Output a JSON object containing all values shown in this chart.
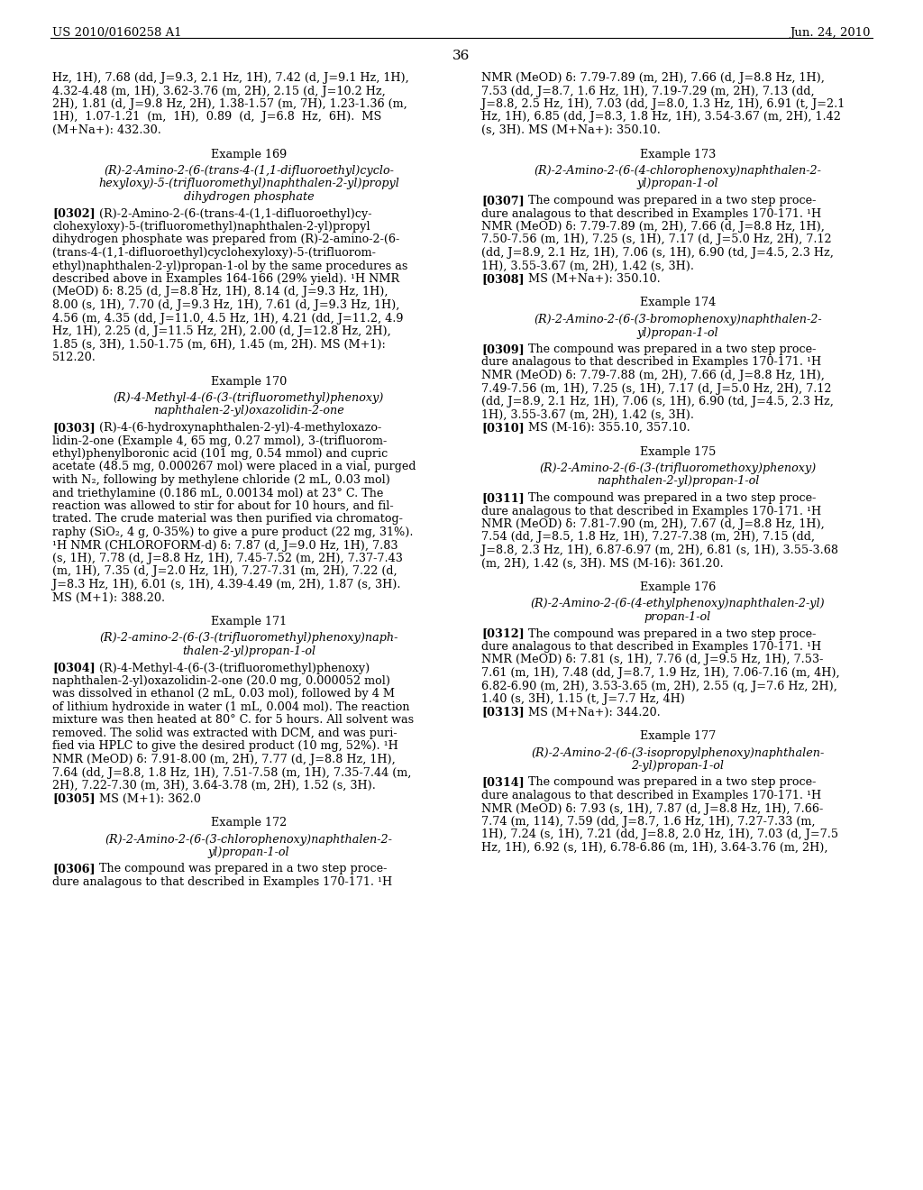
{
  "background_color": "#ffffff",
  "header_left": "US 2010/0160258 A1",
  "header_right": "Jun. 24, 2010",
  "page_number": "36",
  "left_column_lines": [
    [
      "body",
      "Hz, 1H), 7.68 (dd, J=9.3, 2.1 Hz, 1H), 7.42 (d, J=9.1 Hz, 1H),"
    ],
    [
      "body",
      "4.32-4.48 (m, 1H), 3.62-3.76 (m, 2H), 2.15 (d, J=10.2 Hz,"
    ],
    [
      "body",
      "2H), 1.81 (d, J=9.8 Hz, 2H), 1.38-1.57 (m, 7H), 1.23-1.36 (m,"
    ],
    [
      "body",
      "1H),  1.07-1.21  (m,  1H),  0.89  (d,  J=6.8  Hz,  6H).  MS"
    ],
    [
      "body",
      "(M+Na+): 432.30."
    ],
    [
      "gap",
      ""
    ],
    [
      "center",
      "Example 169"
    ],
    [
      "gap_small",
      ""
    ],
    [
      "center_italic",
      "(R)-2-Amino-2-(6-(trans-4-(1,1-difluoroethyl)cyclo-"
    ],
    [
      "center_italic",
      "hexyloxy)-5-(trifluoromethyl)naphthalen-2-yl)propyl"
    ],
    [
      "center_italic",
      "dihydrogen phosphate"
    ],
    [
      "gap_small",
      ""
    ],
    [
      "tag_line",
      "[0302]",
      "(R)-2-Amino-2-(6-(trans-4-(1,1-difluoroethyl)cy-"
    ],
    [
      "body",
      "clohexyloxy)-5-(trifluoromethyl)naphthalen-2-yl)propyl"
    ],
    [
      "body",
      "dihydrogen phosphate was prepared from (R)-2-amino-2-(6-"
    ],
    [
      "body",
      "(trans-4-(1,1-difluoroethyl)cyclohexyloxy)-5-(trifluorom-"
    ],
    [
      "body",
      "ethyl)naphthalen-2-yl)propan-1-ol by the same procedures as"
    ],
    [
      "body",
      "described above in Examples 164-166 (29% yield). ¹H NMR"
    ],
    [
      "body",
      "(MeOD) δ: 8.25 (d, J=8.8 Hz, 1H), 8.14 (d, J=9.3 Hz, 1H),"
    ],
    [
      "body",
      "8.00 (s, 1H), 7.70 (d, J=9.3 Hz, 1H), 7.61 (d, J=9.3 Hz, 1H),"
    ],
    [
      "body",
      "4.56 (m, 4.35 (dd, J=11.0, 4.5 Hz, 1H), 4.21 (dd, J=11.2, 4.9"
    ],
    [
      "body",
      "Hz, 1H), 2.25 (d, J=11.5 Hz, 2H), 2.00 (d, J=12.8 Hz, 2H),"
    ],
    [
      "body",
      "1.85 (s, 3H), 1.50-1.75 (m, 6H), 1.45 (m, 2H). MS (M+1):"
    ],
    [
      "body",
      "512.20."
    ],
    [
      "gap",
      ""
    ],
    [
      "center",
      "Example 170"
    ],
    [
      "gap_small",
      ""
    ],
    [
      "center_italic",
      "(R)-4-Methyl-4-(6-(3-(trifluoromethyl)phenoxy)"
    ],
    [
      "center_italic",
      "naphthalen-2-yl)oxazolidin-2-one"
    ],
    [
      "gap_small",
      ""
    ],
    [
      "tag_line",
      "[0303]",
      "(R)-4-(6-hydroxynaphthalen-2-yl)-4-methyloxazo-"
    ],
    [
      "body",
      "lidin-2-one (Example 4, 65 mg, 0.27 mmol), 3-(trifluorom-"
    ],
    [
      "body",
      "ethyl)phenylboronic acid (101 mg, 0.54 mmol) and cupric"
    ],
    [
      "body",
      "acetate (48.5 mg, 0.000267 mol) were placed in a vial, purged"
    ],
    [
      "body",
      "with N₂, following by methylene chloride (2 mL, 0.03 mol)"
    ],
    [
      "body",
      "and triethylamine (0.186 mL, 0.00134 mol) at 23° C. The"
    ],
    [
      "body",
      "reaction was allowed to stir for about for 10 hours, and fil-"
    ],
    [
      "body",
      "trated. The crude material was then purified via chromatog-"
    ],
    [
      "body",
      "raphy (SiO₂, 4 g, 0-35%) to give a pure product (22 mg, 31%)."
    ],
    [
      "body",
      "¹H NMR (CHLOROFORM-d) δ: 7.87 (d, J=9.0 Hz, 1H), 7.83"
    ],
    [
      "body",
      "(s, 1H), 7.78 (d, J=8.8 Hz, 1H), 7.45-7.52 (m, 2H), 7.37-7.43"
    ],
    [
      "body",
      "(m, 1H), 7.35 (d, J=2.0 Hz, 1H), 7.27-7.31 (m, 2H), 7.22 (d,"
    ],
    [
      "body",
      "J=8.3 Hz, 1H), 6.01 (s, 1H), 4.39-4.49 (m, 2H), 1.87 (s, 3H)."
    ],
    [
      "body",
      "MS (M+1): 388.20."
    ],
    [
      "gap",
      ""
    ],
    [
      "center",
      "Example 171"
    ],
    [
      "gap_small",
      ""
    ],
    [
      "center_italic",
      "(R)-2-amino-2-(6-(3-(trifluoromethyl)phenoxy)naph-"
    ],
    [
      "center_italic",
      "thalen-2-yl)propan-1-ol"
    ],
    [
      "gap_small",
      ""
    ],
    [
      "tag_line",
      "[0304]",
      "(R)-4-Methyl-4-(6-(3-(trifluoromethyl)phenoxy)"
    ],
    [
      "body",
      "naphthalen-2-yl)oxazolidin-2-one (20.0 mg, 0.000052 mol)"
    ],
    [
      "body",
      "was dissolved in ethanol (2 mL, 0.03 mol), followed by 4 M"
    ],
    [
      "body",
      "of lithium hydroxide in water (1 mL, 0.004 mol). The reaction"
    ],
    [
      "body",
      "mixture was then heated at 80° C. for 5 hours. All solvent was"
    ],
    [
      "body",
      "removed. The solid was extracted with DCM, and was puri-"
    ],
    [
      "body",
      "fied via HPLC to give the desired product (10 mg, 52%). ¹H"
    ],
    [
      "body",
      "NMR (MeOD) δ: 7.91-8.00 (m, 2H), 7.77 (d, J=8.8 Hz, 1H),"
    ],
    [
      "body",
      "7.64 (dd, J=8.8, 1.8 Hz, 1H), 7.51-7.58 (m, 1H), 7.35-7.44 (m,"
    ],
    [
      "body",
      "2H), 7.22-7.30 (m, 3H), 3.64-3.78 (m, 2H), 1.52 (s, 3H)."
    ],
    [
      "tag_line2",
      "[0305]",
      "MS (M+1): 362.0"
    ],
    [
      "gap",
      ""
    ],
    [
      "center",
      "Example 172"
    ],
    [
      "gap_small",
      ""
    ],
    [
      "center_italic",
      "(R)-2-Amino-2-(6-(3-chlorophenoxy)naphthalen-2-"
    ],
    [
      "center_italic",
      "yl)propan-1-ol"
    ],
    [
      "gap_small",
      ""
    ],
    [
      "tag_line",
      "[0306]",
      "The compound was prepared in a two step proce-"
    ],
    [
      "body",
      "dure analagous to that described in Examples 170-171. ¹H"
    ]
  ],
  "right_column_lines": [
    [
      "body",
      "NMR (MeOD) δ: 7.79-7.89 (m, 2H), 7.66 (d, J=8.8 Hz, 1H),"
    ],
    [
      "body",
      "7.53 (dd, J=8.7, 1.6 Hz, 1H), 7.19-7.29 (m, 2H), 7.13 (dd,"
    ],
    [
      "body",
      "J=8.8, 2.5 Hz, 1H), 7.03 (dd, J=8.0, 1.3 Hz, 1H), 6.91 (t, J=2.1"
    ],
    [
      "body",
      "Hz, 1H), 6.85 (dd, J=8.3, 1.8 Hz, 1H), 3.54-3.67 (m, 2H), 1.42"
    ],
    [
      "body",
      "(s, 3H). MS (M+Na+): 350.10."
    ],
    [
      "gap",
      ""
    ],
    [
      "center",
      "Example 173"
    ],
    [
      "gap_small",
      ""
    ],
    [
      "center_italic",
      "(R)-2-Amino-2-(6-(4-chlorophenoxy)naphthalen-2-"
    ],
    [
      "center_italic",
      "yl)propan-1-ol"
    ],
    [
      "gap_small",
      ""
    ],
    [
      "tag_line",
      "[0307]",
      "The compound was prepared in a two step proce-"
    ],
    [
      "body",
      "dure analagous to that described in Examples 170-171. ¹H"
    ],
    [
      "body",
      "NMR (MeOD) δ: 7.79-7.89 (m, 2H), 7.66 (d, J=8.8 Hz, 1H),"
    ],
    [
      "body",
      "7.50-7.56 (m, 1H), 7.25 (s, 1H), 7.17 (d, J=5.0 Hz, 2H), 7.12"
    ],
    [
      "body",
      "(dd, J=8.9, 2.1 Hz, 1H), 7.06 (s, 1H), 6.90 (td, J=4.5, 2.3 Hz,"
    ],
    [
      "body",
      "1H), 3.55-3.67 (m, 2H), 1.42 (s, 3H)."
    ],
    [
      "tag_line2",
      "[0308]",
      "MS (M+Na+): 350.10."
    ],
    [
      "gap",
      ""
    ],
    [
      "center",
      "Example 174"
    ],
    [
      "gap_small",
      ""
    ],
    [
      "center_italic",
      "(R)-2-Amino-2-(6-(3-bromophenoxy)naphthalen-2-"
    ],
    [
      "center_italic",
      "yl)propan-1-ol"
    ],
    [
      "gap_small",
      ""
    ],
    [
      "tag_line",
      "[0309]",
      "The compound was prepared in a two step proce-"
    ],
    [
      "body",
      "dure analagous to that described in Examples 170-171. ¹H"
    ],
    [
      "body",
      "NMR (MeOD) δ: 7.79-7.88 (m, 2H), 7.66 (d, J=8.8 Hz, 1H),"
    ],
    [
      "body",
      "7.49-7.56 (m, 1H), 7.25 (s, 1H), 7.17 (d, J=5.0 Hz, 2H), 7.12"
    ],
    [
      "body",
      "(dd, J=8.9, 2.1 Hz, 1H), 7.06 (s, 1H), 6.90 (td, J=4.5, 2.3 Hz,"
    ],
    [
      "body",
      "1H), 3.55-3.67 (m, 2H), 1.42 (s, 3H)."
    ],
    [
      "tag_line2",
      "[0310]",
      "MS (M-16): 355.10, 357.10."
    ],
    [
      "gap",
      ""
    ],
    [
      "center",
      "Example 175"
    ],
    [
      "gap_small",
      ""
    ],
    [
      "center_italic",
      "(R)-2-Amino-2-(6-(3-(trifluoromethoxy)phenoxy)"
    ],
    [
      "center_italic",
      "naphthalen-2-yl)propan-1-ol"
    ],
    [
      "gap_small",
      ""
    ],
    [
      "tag_line",
      "[0311]",
      "The compound was prepared in a two step proce-"
    ],
    [
      "body",
      "dure analagous to that described in Examples 170-171. ¹H"
    ],
    [
      "body",
      "NMR (MeOD) δ: 7.81-7.90 (m, 2H), 7.67 (d, J=8.8 Hz, 1H),"
    ],
    [
      "body",
      "7.54 (dd, J=8.5, 1.8 Hz, 1H), 7.27-7.38 (m, 2H), 7.15 (dd,"
    ],
    [
      "body",
      "J=8.8, 2.3 Hz, 1H), 6.87-6.97 (m, 2H), 6.81 (s, 1H), 3.55-3.68"
    ],
    [
      "body",
      "(m, 2H), 1.42 (s, 3H). MS (M-16): 361.20."
    ],
    [
      "gap",
      ""
    ],
    [
      "center",
      "Example 176"
    ],
    [
      "gap_small",
      ""
    ],
    [
      "center_italic",
      "(R)-2-Amino-2-(6-(4-ethylphenoxy)naphthalen-2-yl)"
    ],
    [
      "center_italic",
      "propan-1-ol"
    ],
    [
      "gap_small",
      ""
    ],
    [
      "tag_line",
      "[0312]",
      "The compound was prepared in a two step proce-"
    ],
    [
      "body",
      "dure analagous to that described in Examples 170-171. ¹H"
    ],
    [
      "body",
      "NMR (MeOD) δ: 7.81 (s, 1H), 7.76 (d, J=9.5 Hz, 1H), 7.53-"
    ],
    [
      "body",
      "7.61 (m, 1H), 7.48 (dd, J=8.7, 1.9 Hz, 1H), 7.06-7.16 (m, 4H),"
    ],
    [
      "body",
      "6.82-6.90 (m, 2H), 3.53-3.65 (m, 2H), 2.55 (q, J=7.6 Hz, 2H),"
    ],
    [
      "body",
      "1.40 (s, 3H), 1.15 (t, J=7.7 Hz, 4H)"
    ],
    [
      "tag_line2",
      "[0313]",
      "MS (M+Na+): 344.20."
    ],
    [
      "gap",
      ""
    ],
    [
      "center",
      "Example 177"
    ],
    [
      "gap_small",
      ""
    ],
    [
      "center_italic",
      "(R)-2-Amino-2-(6-(3-isopropylphenoxy)naphthalen-"
    ],
    [
      "center_italic",
      "2-yl)propan-1-ol"
    ],
    [
      "gap_small",
      ""
    ],
    [
      "tag_line",
      "[0314]",
      "The compound was prepared in a two step proce-"
    ],
    [
      "body",
      "dure analagous to that described in Examples 170-171. ¹H"
    ],
    [
      "body",
      "NMR (MeOD) δ: 7.93 (s, 1H), 7.87 (d, J=8.8 Hz, 1H), 7.66-"
    ],
    [
      "body",
      "7.74 (m, 114), 7.59 (dd, J=8.7, 1.6 Hz, 1H), 7.27-7.33 (m,"
    ],
    [
      "body",
      "1H), 7.24 (s, 1H), 7.21 (dd, J=8.8, 2.0 Hz, 1H), 7.03 (d, J=7.5"
    ],
    [
      "body",
      "Hz, 1H), 6.92 (s, 1H), 6.78-6.86 (m, 1H), 3.64-3.76 (m, 2H),"
    ]
  ]
}
